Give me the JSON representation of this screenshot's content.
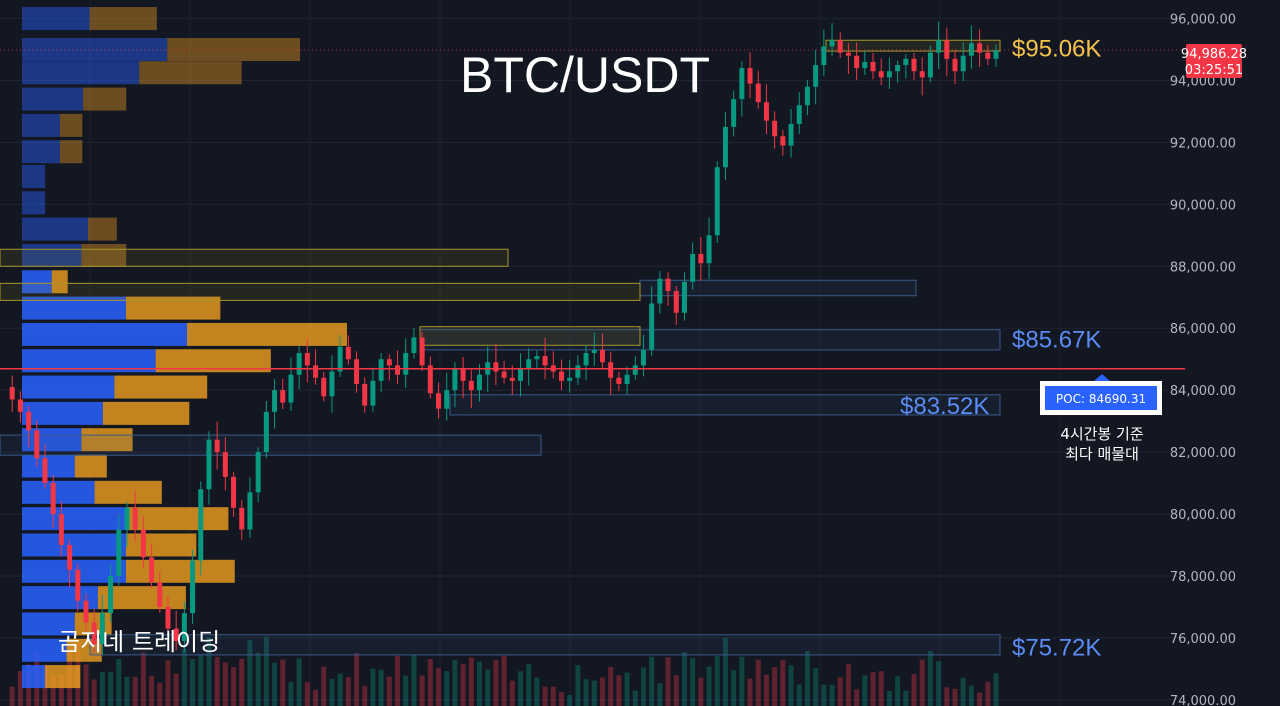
{
  "chart_data": {
    "type": "candlestick",
    "title": "BTC/USDT",
    "watermark": "곰지네 트레이딩",
    "ylim": [
      73800,
      96600
    ],
    "yticks": [
      "96,000.00",
      "94,000.00",
      "92,000.00",
      "90,000.00",
      "88,000.00",
      "86,000.00",
      "84,000.00",
      "82,000.00",
      "80,000.00",
      "78,000.00",
      "76,000.00",
      "74,000.00"
    ],
    "last_price": "94,986.28",
    "countdown": "03:25:51",
    "poc": {
      "value": 84690.31,
      "label": "POC: 84690.31",
      "note_line1": "4시간봉 기준",
      "note_line2": "최다 매물대"
    },
    "levels": [
      {
        "label": "$95.06K",
        "value": 95060,
        "color": "#f5c24b"
      },
      {
        "label": "$85.67K",
        "value": 85670,
        "color": "#5b8cf5"
      },
      {
        "label": "$83.52K",
        "value": 83520,
        "color": "#5b8cf5"
      },
      {
        "label": "$75.72K",
        "value": 75720,
        "color": "#5b8cf5"
      }
    ],
    "zones": [
      {
        "from": 94950,
        "to": 95300,
        "color": "#a8962a"
      },
      {
        "from": 85300,
        "to": 85950,
        "color": "#3a5a8a"
      },
      {
        "from": 85450,
        "to": 86050,
        "color": "#a8962a"
      },
      {
        "from": 83200,
        "to": 83850,
        "color": "#3a5a8a"
      },
      {
        "from": 87050,
        "to": 87550,
        "color": "#3a5a8a"
      },
      {
        "from": 86900,
        "to": 87450,
        "color": "#a8962a"
      },
      {
        "from": 88000,
        "to": 88550,
        "color": "#a8962a"
      },
      {
        "from": 81900,
        "to": 82550,
        "color": "#3a5a8a"
      },
      {
        "from": 75450,
        "to": 76100,
        "color": "#3a5a8a"
      }
    ],
    "volume_profile": [
      {
        "price": 96000,
        "up": 0.41,
        "down": 0.42
      },
      {
        "price": 95000,
        "up": 0.88,
        "down": 0.83
      },
      {
        "price": 94250,
        "up": 0.71,
        "down": 0.64
      },
      {
        "price": 93400,
        "up": 0.37,
        "down": 0.27
      },
      {
        "price": 92550,
        "up": 0.23,
        "down": 0.14
      },
      {
        "price": 91700,
        "up": 0.23,
        "down": 0.14
      },
      {
        "price": 90900,
        "up": 0.14,
        "down": 0
      },
      {
        "price": 90050,
        "up": 0.14,
        "down": 0
      },
      {
        "price": 89200,
        "up": 0.4,
        "down": 0.18
      },
      {
        "price": 88350,
        "up": 0.36,
        "down": 0.28
      },
      {
        "price": 87500,
        "up": 0.18,
        "down": 0.1
      },
      {
        "price": 86650,
        "up": 0.63,
        "down": 0.59
      },
      {
        "price": 85800,
        "up": 1.0,
        "down": 1.0
      },
      {
        "price": 84950,
        "up": 0.81,
        "down": 0.72
      },
      {
        "price": 84100,
        "up": 0.56,
        "down": 0.58
      },
      {
        "price": 83250,
        "up": 0.49,
        "down": 0.54
      },
      {
        "price": 82400,
        "up": 0.36,
        "down": 0.32
      },
      {
        "price": 81550,
        "up": 0.32,
        "down": 0.2
      },
      {
        "price": 80700,
        "up": 0.44,
        "down": 0.42
      },
      {
        "price": 79850,
        "up": 0.64,
        "down": 0.63
      },
      {
        "price": 79000,
        "up": 0.63,
        "down": 0.44
      },
      {
        "price": 78150,
        "up": 0.63,
        "down": 0.68
      },
      {
        "price": 77300,
        "up": 0.46,
        "down": 0.55
      },
      {
        "price": 76450,
        "up": 0.32,
        "down": 0.23
      },
      {
        "price": 75600,
        "up": 0.27,
        "down": 0.22
      },
      {
        "price": 74750,
        "up": 0.14,
        "down": 0.22
      }
    ],
    "candles_path": [
      84100,
      83700,
      83300,
      82700,
      81800,
      81000,
      80000,
      79000,
      78200,
      77200,
      76500,
      75800,
      76800,
      78000,
      79500,
      80200,
      79500,
      78600,
      77800,
      77000,
      76300,
      75900,
      76800,
      78500,
      80800,
      82400,
      82000,
      81200,
      80200,
      79500,
      80700,
      82000,
      83300,
      84000,
      83600,
      84500,
      85200,
      84800,
      84400,
      83800,
      84600,
      85400,
      85000,
      84200,
      83500,
      84300,
      85000,
      84800,
      84500,
      85200,
      85700,
      84800,
      83900,
      83400,
      84000,
      84700,
      84300,
      84000,
      84500,
      84900,
      84600,
      84400,
      84300,
      84700,
      85000,
      85100,
      84800,
      84600,
      84300,
      84400,
      84800,
      85200,
      85300,
      84900,
      84400,
      84200,
      84500,
      84800,
      85300,
      86800,
      87600,
      87200,
      86500,
      87500,
      88400,
      88100,
      89000,
      91200,
      92500,
      93400,
      94400,
      93900,
      93300,
      92700,
      92200,
      91900,
      92600,
      93200,
      93800,
      94500,
      95100,
      95300,
      94900,
      94800,
      94400,
      94600,
      94300,
      94100,
      94300,
      94500,
      94700,
      94300,
      94100,
      94900,
      95300,
      94700,
      94300,
      94800,
      95200,
      94900,
      94700,
      94986
    ]
  }
}
